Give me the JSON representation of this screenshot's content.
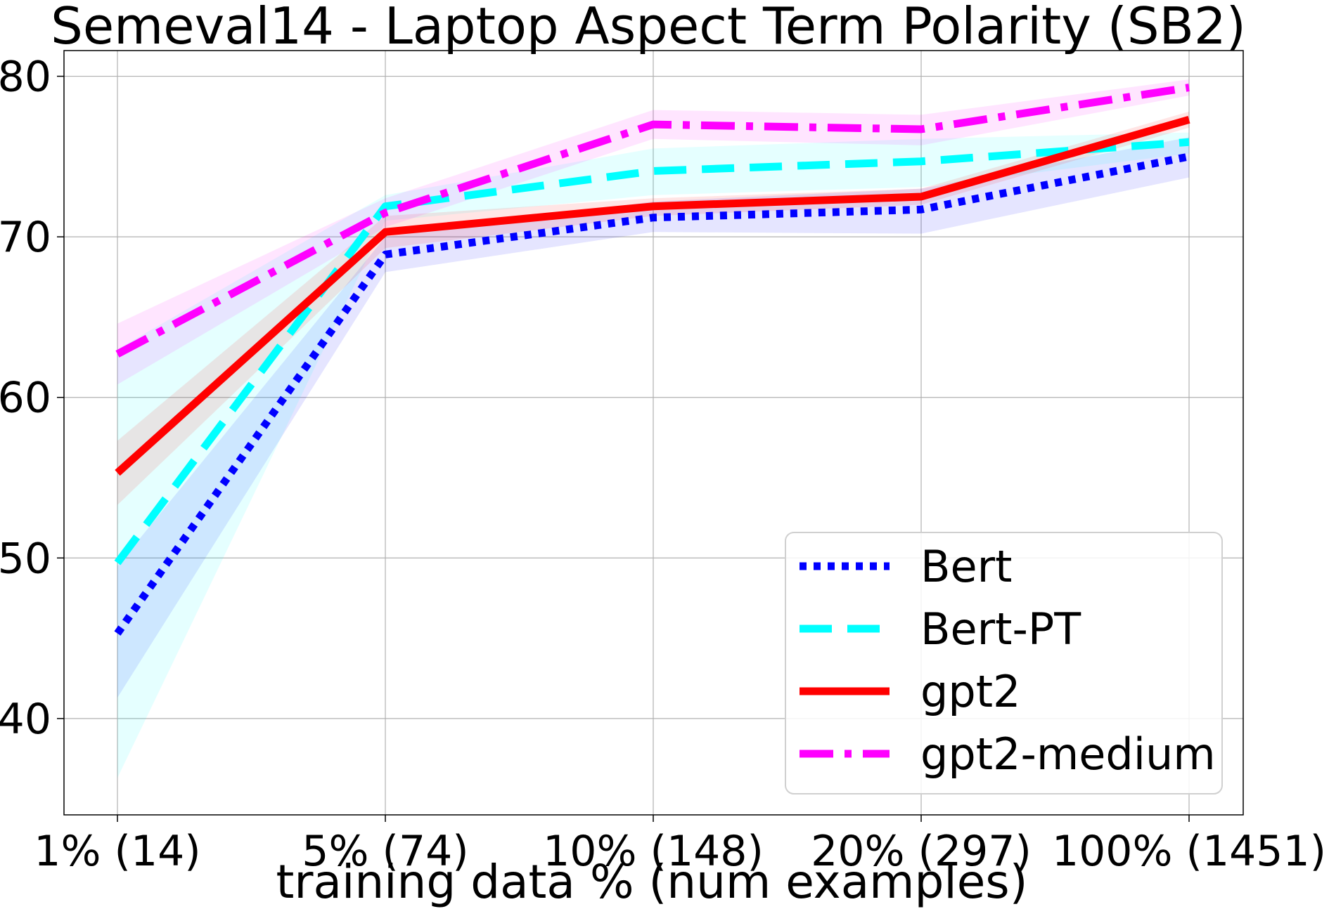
{
  "chart_data": {
    "type": "line",
    "title": "Semeval14 - Laptop Aspect Term Polarity (SB2)",
    "xlabel": "training data % (num examples)",
    "ylabel": "",
    "categories": [
      "1% (14)",
      "5% (74)",
      "10% (148)",
      "20% (297)",
      "100% (1451)"
    ],
    "ylim": [
      34.0,
      81.6
    ],
    "yticks": [
      40,
      50,
      60,
      70,
      80
    ],
    "grid": true,
    "legend_position": "lower-right",
    "series": [
      {
        "name": "Bert",
        "values": [
          45.3,
          68.9,
          71.2,
          71.7,
          75.0
        ],
        "lower": [
          41.3,
          67.8,
          70.3,
          70.2,
          73.7
        ],
        "upper": [
          49.5,
          70.0,
          72.2,
          73.0,
          76.2
        ],
        "color": "#0000ff",
        "band_color": "#0000ff",
        "style": "dotted"
      },
      {
        "name": "Bert-PT",
        "values": [
          49.7,
          71.9,
          74.1,
          74.7,
          75.9
        ],
        "lower": [
          36.3,
          71.0,
          72.6,
          73.1,
          75.2
        ],
        "upper": [
          63.0,
          72.6,
          75.5,
          76.1,
          76.5
        ],
        "color": "#00ffff",
        "band_color": "#00ffff",
        "style": "dashed"
      },
      {
        "name": "gpt2",
        "values": [
          55.3,
          70.3,
          71.9,
          72.5,
          77.3
        ],
        "lower": [
          53.3,
          69.3,
          71.3,
          72.0,
          76.8
        ],
        "upper": [
          57.3,
          71.3,
          72.4,
          73.0,
          77.8
        ],
        "color": "#ff0000",
        "band_color": "#ff0000",
        "style": "solid"
      },
      {
        "name": "gpt2-medium",
        "values": [
          62.7,
          71.5,
          77.0,
          76.7,
          79.3
        ],
        "lower": [
          60.8,
          70.6,
          76.1,
          75.7,
          78.8
        ],
        "upper": [
          64.6,
          72.4,
          77.9,
          77.6,
          79.8
        ],
        "color": "#ff00ff",
        "band_color": "#ff00ff",
        "style": "dashdot"
      }
    ]
  }
}
